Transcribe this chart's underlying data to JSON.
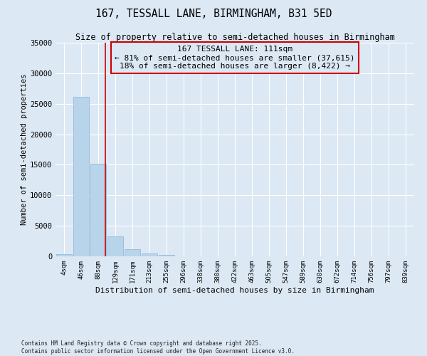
{
  "title_line1": "167, TESSALL LANE, BIRMINGHAM, B31 5ED",
  "title_line2": "Size of property relative to semi-detached houses in Birmingham",
  "xlabel": "Distribution of semi-detached houses by size in Birmingham",
  "ylabel": "Number of semi-detached properties",
  "annotation_title": "167 TESSALL LANE: 111sqm",
  "annotation_line2": "← 81% of semi-detached houses are smaller (37,615)",
  "annotation_line3": "18% of semi-detached houses are larger (8,422) →",
  "footer_line1": "Contains HM Land Registry data © Crown copyright and database right 2025.",
  "footer_line2": "Contains public sector information licensed under the Open Government Licence v3.0.",
  "categories": [
    "4sqm",
    "46sqm",
    "88sqm",
    "129sqm",
    "171sqm",
    "213sqm",
    "255sqm",
    "296sqm",
    "338sqm",
    "380sqm",
    "422sqm",
    "463sqm",
    "505sqm",
    "547sqm",
    "589sqm",
    "630sqm",
    "672sqm",
    "714sqm",
    "756sqm",
    "797sqm",
    "839sqm"
  ],
  "values": [
    400,
    26100,
    15200,
    3300,
    1200,
    500,
    250,
    0,
    0,
    0,
    0,
    0,
    0,
    0,
    0,
    0,
    0,
    0,
    0,
    0,
    0
  ],
  "bar_color": "#b8d4ea",
  "bar_edge_color": "#8ab4d4",
  "vline_color": "#cc0000",
  "vline_pos": 2.42,
  "annotation_box_color": "#cc0000",
  "background_color": "#dce8f4",
  "ylim": [
    0,
    35000
  ],
  "yticks": [
    0,
    5000,
    10000,
    15000,
    20000,
    25000,
    30000,
    35000
  ]
}
